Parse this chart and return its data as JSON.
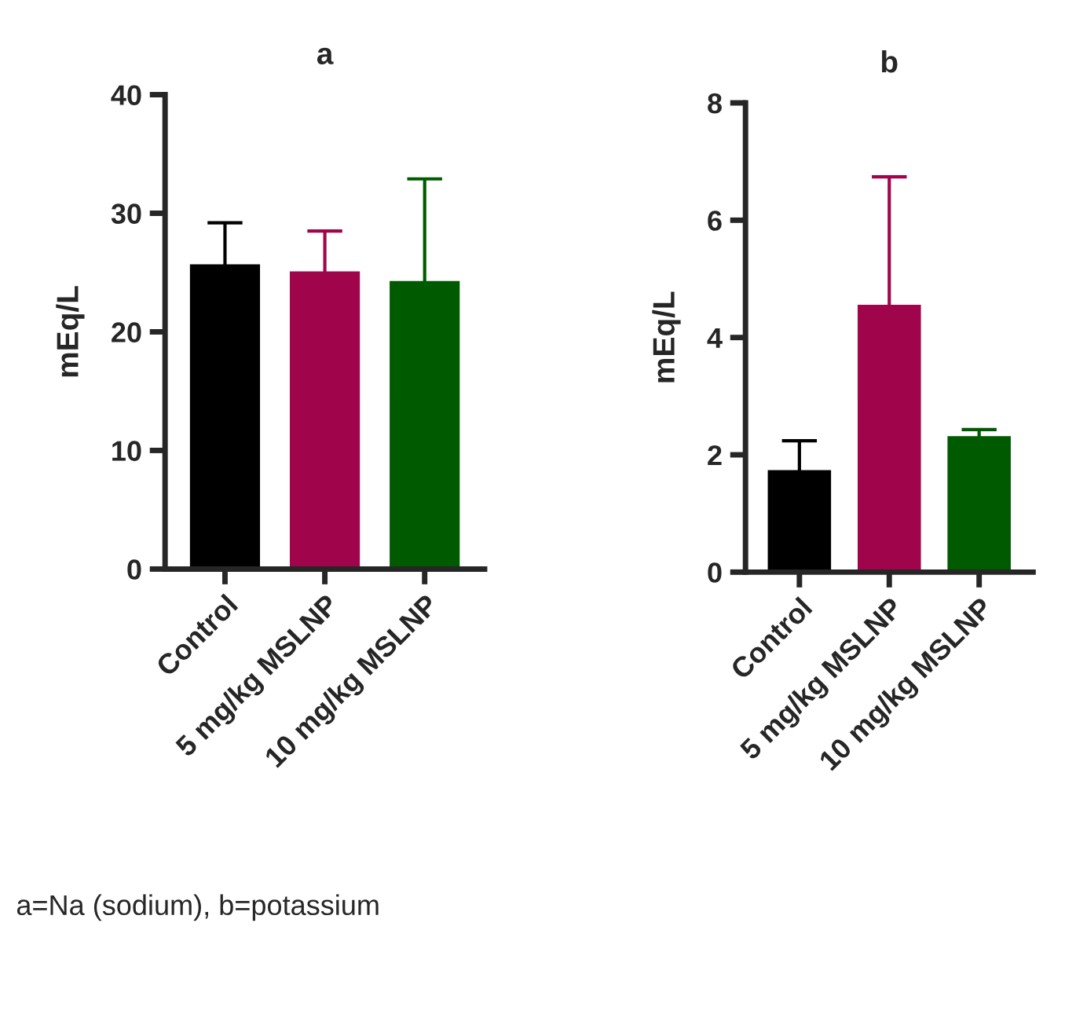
{
  "chart_data": [
    {
      "type": "bar",
      "title": "a",
      "ylabel": "mEq/L",
      "categories": [
        "Control",
        "5 mg/kg MSLNP",
        "10 mg/kg MSLNP"
      ],
      "values": [
        25.6,
        25.0,
        24.2
      ],
      "colors": [
        "#000000",
        "#a0054b",
        "#005a00"
      ],
      "errors": [
        3.6,
        3.5,
        8.7
      ],
      "ylim": [
        0,
        40
      ],
      "yticks": [
        0,
        10,
        20,
        30,
        40
      ],
      "annotations": [
        "a=Na (sodium), b=potassium"
      ]
    },
    {
      "type": "bar",
      "title": "b",
      "ylabel": "mEq/L",
      "categories": [
        "Control",
        "5 mg/kg MSLNP",
        "10 mg/kg MSLNP"
      ],
      "values": [
        1.72,
        4.54,
        2.3
      ],
      "colors": [
        "#000000",
        "#a0054b",
        "#005a00"
      ],
      "errors": [
        0.52,
        2.2,
        0.13
      ],
      "ylim": [
        0,
        8
      ],
      "yticks": [
        0,
        2,
        4,
        6,
        8
      ]
    }
  ]
}
